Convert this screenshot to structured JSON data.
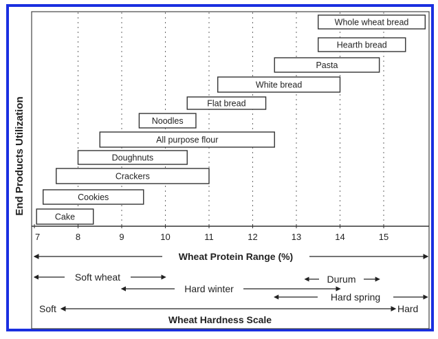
{
  "chart_data": {
    "type": "range-bar",
    "ylabel": "End Products Utilization",
    "xlabel": "Wheat Protein Range (%)",
    "xlim": [
      7,
      16
    ],
    "x_ticks": [
      7,
      8,
      9,
      10,
      11,
      12,
      13,
      14,
      15
    ],
    "grid": "vertical-dotted",
    "products": [
      {
        "name": "Whole wheat bread",
        "min": 13.5,
        "max": 16.0
      },
      {
        "name": "Hearth bread",
        "min": 13.5,
        "max": 15.5
      },
      {
        "name": "Pasta",
        "min": 12.5,
        "max": 14.9
      },
      {
        "name": "White bread",
        "min": 11.2,
        "max": 14.0
      },
      {
        "name": "Flat bread",
        "min": 10.5,
        "max": 12.3
      },
      {
        "name": "Noodles",
        "min": 9.4,
        "max": 10.7
      },
      {
        "name": "All purpose flour",
        "min": 8.5,
        "max": 12.5
      },
      {
        "name": "Doughnuts",
        "min": 8.0,
        "max": 10.5
      },
      {
        "name": "Crackers",
        "min": 7.5,
        "max": 11.0
      },
      {
        "name": "Cookies",
        "min": 7.2,
        "max": 9.5
      },
      {
        "name": "Cake",
        "min": 7.05,
        "max": 8.35
      }
    ],
    "wheat_classes": [
      {
        "name": "Soft wheat",
        "min": 7.0,
        "max": 10.0
      },
      {
        "name": "Durum",
        "min": 13.2,
        "max": 14.9
      },
      {
        "name": "Hard winter",
        "min": 9.0,
        "max": 14.0
      },
      {
        "name": "Hard spring",
        "min": 12.5,
        "max": 16.0
      }
    ],
    "hardness_scale": {
      "title": "Wheat Hardness Scale",
      "low": "Soft",
      "high": "Hard"
    }
  },
  "colors": {
    "frame": "#1a2fe0",
    "ink": "#222222"
  }
}
